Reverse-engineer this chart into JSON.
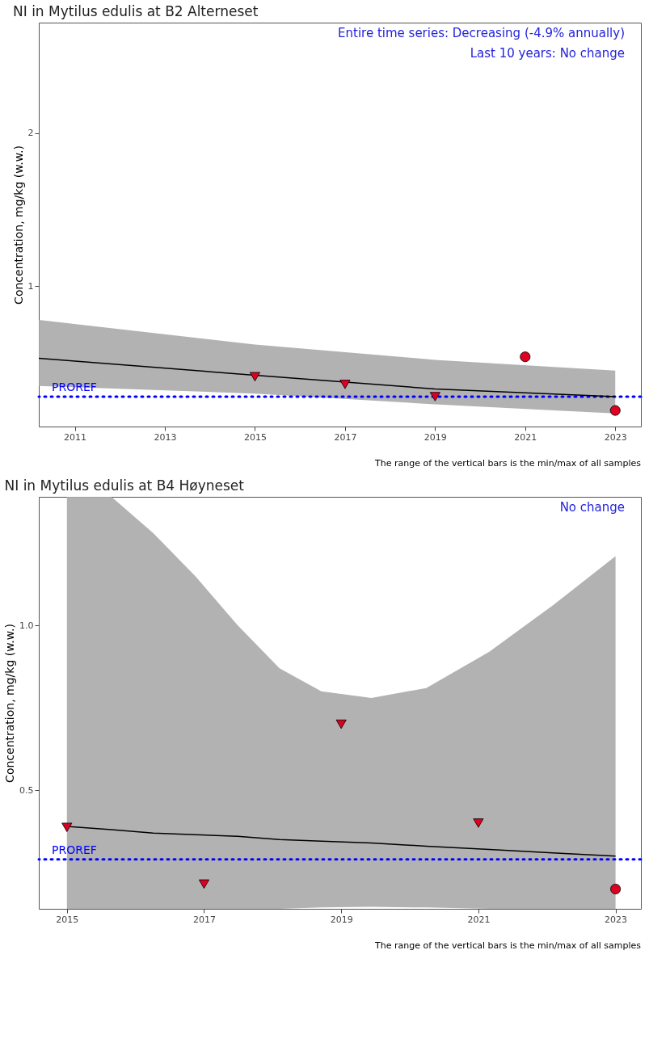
{
  "chart_data": [
    {
      "type": "scatter",
      "title": "NI in Mytilus edulis at B2 Alterneset",
      "ylabel": "Concentration, mg/kg (w.w.)",
      "annotations": [
        "Entire time series: Decreasing (-4.9% annually)",
        "Last 10 years: No change",
        "The range of the vertical bars is the min/max of all samples"
      ],
      "xlim": [
        2010.2,
        2023.57
      ],
      "xticks": [
        2011,
        2013,
        2015,
        2017,
        2019,
        2021,
        2023
      ],
      "ylim": [
        0.085,
        2.72
      ],
      "yticks": [
        1,
        2
      ],
      "grid": false,
      "ref_lines": [
        {
          "axis": "y",
          "value": 0.28,
          "label": "PROREF",
          "color": "#0000ff",
          "line_style": "dotted"
        }
      ],
      "series": [
        {
          "type": "line",
          "color": "#000000",
          "x": [
            2010.2,
            2015,
            2019,
            2023
          ],
          "values": [
            0.53,
            0.42,
            0.33,
            0.28
          ],
          "lower": [
            0.35,
            0.3,
            0.23,
            0.17
          ],
          "upper": [
            0.78,
            0.62,
            0.52,
            0.45
          ],
          "marker": "none"
        },
        {
          "color": "#dd0022",
          "marker": "triangle",
          "x": [
            2015,
            2017,
            2019
          ],
          "values": [
            0.41,
            0.36,
            0.28
          ]
        },
        {
          "color": "#dd0022",
          "marker": "circle",
          "x": [
            2021,
            2023
          ],
          "values": [
            0.54,
            0.19
          ]
        }
      ]
    },
    {
      "type": "scatter",
      "title": "NI in Mytilus edulis at B4 Høyneset",
      "ylabel": "Concentration, mg/kg (w.w.)",
      "annotations": [
        "No change",
        "The range of the vertical bars is the min/max of all samples"
      ],
      "xlim": [
        2014.59,
        2023.37
      ],
      "xticks": [
        2015,
        2017,
        2019,
        2021,
        2023
      ],
      "ylim": [
        0.14,
        1.39
      ],
      "yticks": [
        {
          "value": 0.5,
          "label": "0.5"
        },
        {
          "value": 1.0,
          "label": "1.0"
        }
      ],
      "grid": false,
      "ref_lines": [
        {
          "axis": "y",
          "value": 0.29,
          "label": "PROREF",
          "color": "#0000ff",
          "line_style": "dotted"
        }
      ],
      "series": [
        {
          "type": "line",
          "color": "#000000",
          "x": [
            2015,
            2015.65,
            2016.26,
            2016.87,
            2017.49,
            2018.1,
            2018.71,
            2019.44,
            2020.24,
            2021.16,
            2022.08,
            2023
          ],
          "values": [
            0.39,
            0.38,
            0.37,
            0.365,
            0.36,
            0.35,
            0.345,
            0.34,
            0.33,
            0.32,
            0.31,
            0.3
          ],
          "lower": [
            0.14,
            0.14,
            0.14,
            0.14,
            0.14,
            0.14,
            0.144,
            0.146,
            0.144,
            0.14,
            0.14,
            0.14
          ],
          "upper": [
            1.39,
            1.39,
            1.28,
            1.15,
            1.0,
            0.87,
            0.8,
            0.78,
            0.81,
            0.92,
            1.06,
            1.21
          ],
          "marker": "none"
        },
        {
          "color": "#dd0022",
          "marker": "triangle",
          "x": [
            2015,
            2017,
            2019,
            2021
          ],
          "values": [
            0.387,
            0.215,
            0.7,
            0.4
          ]
        },
        {
          "color": "#dd0022",
          "marker": "circle",
          "x": [
            2023
          ],
          "values": [
            0.2
          ]
        }
      ]
    }
  ]
}
